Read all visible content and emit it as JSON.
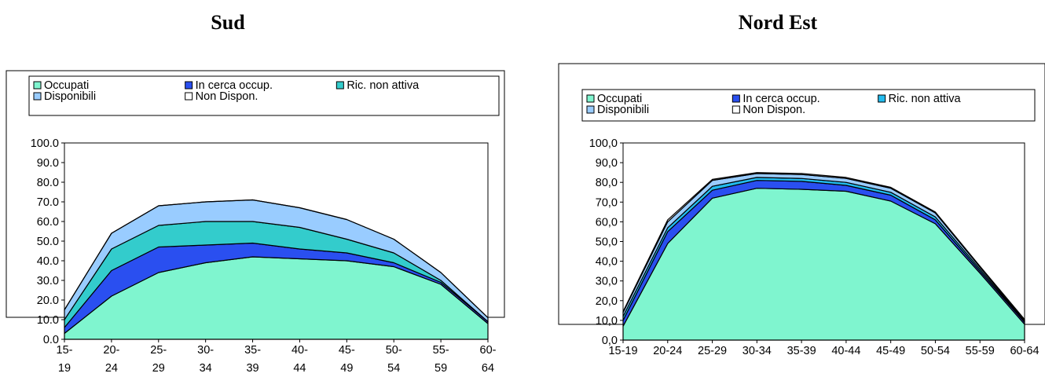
{
  "colors": {
    "occupati": "#7ff5cf",
    "in_cerca": "#2a4ff0",
    "ric_non_attiva": "#33cccc",
    "ric_non_attiva_ne": "#22bbee",
    "disponibili": "#99ccff",
    "non_dispon": "#ffffff",
    "outline": "#000000"
  },
  "chart_data": [
    {
      "type": "area",
      "stacked": true,
      "title": "Sud",
      "categories": [
        "15-\n19",
        "20-\n24",
        "25-\n29",
        "30-\n34",
        "35-\n39",
        "40-\n44",
        "45-\n49",
        "50-\n54",
        "55-\n59",
        "60-\n64"
      ],
      "ylim": [
        0,
        100
      ],
      "yticks": [
        "0.0",
        "10.0",
        "20.0",
        "30.0",
        "40.0",
        "50.0",
        "60.0",
        "70.0",
        "80.0",
        "90.0",
        "100.0"
      ],
      "legend": [
        "Occupati",
        "In cerca occup.",
        "Ric. non attiva",
        "Disponibili",
        "Non Dispon."
      ],
      "series": [
        {
          "name": "Occupati",
          "values": [
            3,
            22,
            34,
            39,
            42,
            41,
            40,
            37,
            28,
            8
          ]
        },
        {
          "name": "In cerca occup.",
          "values": [
            3,
            13,
            13,
            9,
            7,
            5,
            4,
            2,
            1,
            1
          ]
        },
        {
          "name": "Ric. non attiva",
          "values": [
            4,
            11,
            11,
            12,
            11,
            11,
            7,
            5,
            1,
            0
          ]
        },
        {
          "name": "Disponibili",
          "values": [
            5,
            8,
            10,
            10,
            11,
            10,
            10,
            7,
            4,
            2
          ]
        },
        {
          "name": "Non Dispon.",
          "values": [
            0,
            0,
            0,
            0,
            0,
            0,
            0,
            0,
            0,
            0
          ]
        }
      ]
    },
    {
      "type": "area",
      "stacked": true,
      "title": "Nord Est",
      "categories": [
        "15-19",
        "20-24",
        "25-29",
        "30-34",
        "35-39",
        "40-44",
        "45-49",
        "50-54",
        "55-59",
        "60-64"
      ],
      "ylim": [
        0,
        100
      ],
      "yticks": [
        "0,0",
        "10,0",
        "20,0",
        "30,0",
        "40,0",
        "50,0",
        "60,0",
        "70,0",
        "80,0",
        "90,0",
        "100,0"
      ],
      "legend": [
        "Occupati",
        "In cerca occup.",
        "Ric. non attiva",
        "Disponibili",
        "Non Dispon."
      ],
      "series": [
        {
          "name": "Occupati",
          "values": [
            7,
            49,
            72,
            77,
            76.5,
            75.5,
            70.5,
            59,
            34,
            8
          ]
        },
        {
          "name": "In cerca occup.",
          "values": [
            3,
            6,
            4,
            4,
            4,
            3,
            3,
            2,
            1,
            1
          ]
        },
        {
          "name": "Ric. non attiva",
          "values": [
            2,
            2,
            2,
            1.5,
            1.5,
            1.5,
            1.5,
            1.5,
            1,
            0.5
          ]
        },
        {
          "name": "Disponibili",
          "values": [
            2,
            3,
            3,
            2,
            2,
            2,
            2,
            2,
            1,
            0.5
          ]
        },
        {
          "name": "Non Dispon.",
          "values": [
            0.5,
            1,
            0.5,
            0.5,
            0.5,
            0.5,
            0.5,
            0.5,
            0.5,
            0.5
          ]
        }
      ]
    }
  ]
}
